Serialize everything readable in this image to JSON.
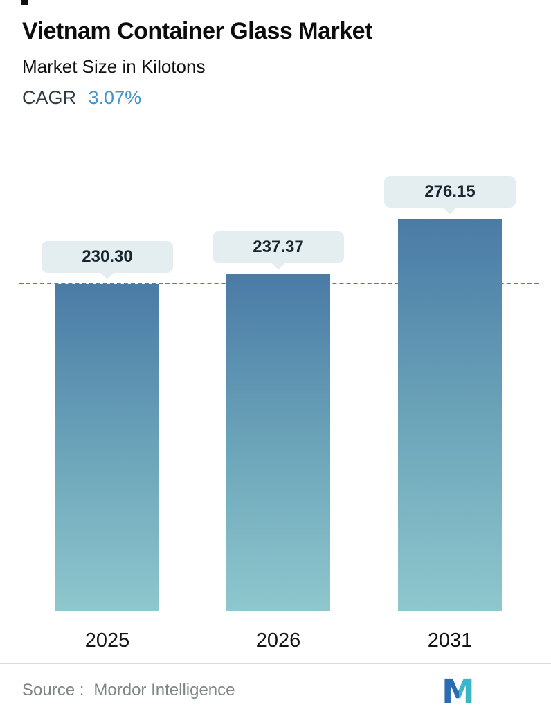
{
  "header": {
    "title": "Vietnam Container Glass Market",
    "subtitle": "Market Size in Kilotons",
    "cagr_label": "CAGR",
    "cagr_value": "3.07%"
  },
  "chart_data": {
    "type": "bar",
    "title": "Vietnam Container Glass Market",
    "ylabel": "Market Size in Kilotons",
    "cagr": "3.07%",
    "categories": [
      "2025",
      "2026",
      "2031"
    ],
    "values": [
      230.3,
      237.37,
      276.15
    ],
    "value_labels": [
      "230.30",
      "237.37",
      "276.15"
    ],
    "ylim": [
      0,
      328
    ],
    "grid": "off",
    "legend": "none",
    "reference_line": {
      "value": 230.3,
      "style": "dashed"
    }
  },
  "footer": {
    "source_label": "Source :",
    "source_value": "Mordor Intelligence",
    "logo": "mordor-intelligence-logo"
  },
  "colors": {
    "bar_gradient_top": "#4a7ba6",
    "bar_gradient_bottom": "#8fc7ce",
    "badge_bg": "#e4edf0",
    "badge_text": "#17262e",
    "dash_line": "#4d7fa0",
    "cagr_value": "#4593cb",
    "source_text": "#7e8689",
    "logo_blue": "#2b6cb2",
    "logo_teal": "#3ab7c6"
  }
}
